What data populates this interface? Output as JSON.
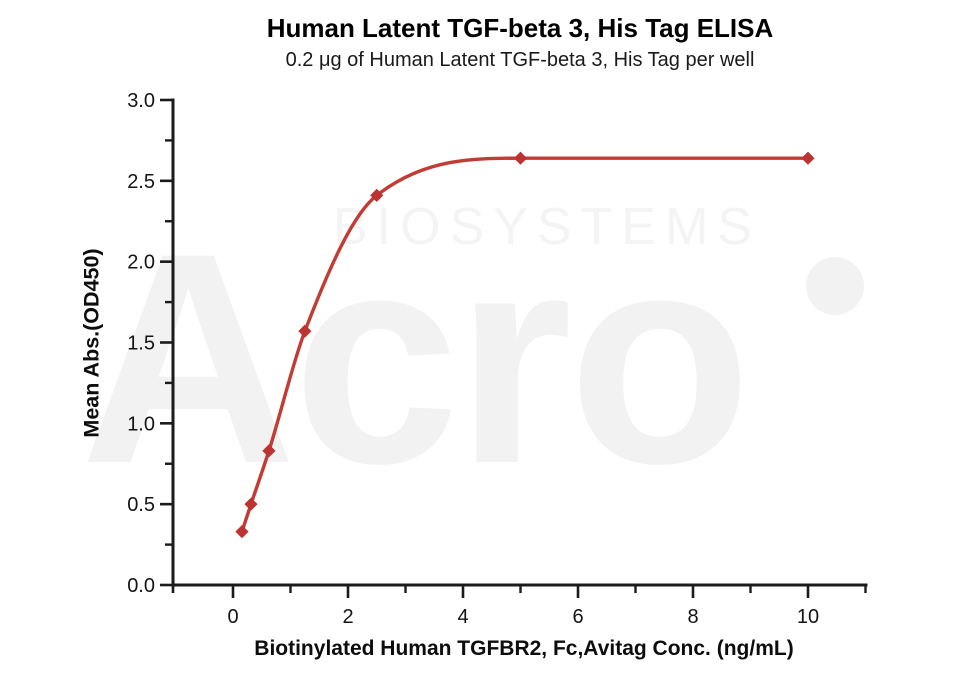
{
  "page": {
    "background": "#ffffff"
  },
  "chart_data": {
    "type": "scatter",
    "title": "Human Latent TGF-beta 3, His Tag ELISA",
    "subtitle": "0.2 μg of Human Latent TGF-beta 3, His Tag per well",
    "xlabel": "Biotinylated Human TGFBR2, Fc,Avitag Conc. (ng/mL)",
    "ylabel": "Mean Abs.(OD450)",
    "series": [
      {
        "name": "Human Latent TGF-beta 3, His Tag",
        "x": [
          0.156,
          0.313,
          0.625,
          1.25,
          2.5,
          5,
          10
        ],
        "y": [
          0.33,
          0.5,
          0.83,
          1.57,
          2.41,
          2.64,
          2.64
        ],
        "marker": "diamond",
        "marker_color": "#bc3331",
        "fit": "4PL sigmoidal fit curve"
      }
    ],
    "xlim": [
      -1,
      11
    ],
    "ylim": [
      0,
      3.0
    ],
    "x_major_ticks": [
      0,
      2,
      4,
      6,
      8,
      10
    ],
    "x_tick_labels": [
      "0",
      "2",
      "4",
      "6",
      "8",
      "10"
    ],
    "x_minor_ticks": [
      1,
      3,
      5,
      7,
      9,
      11
    ],
    "y_major_ticks": [
      0,
      0.5,
      1,
      1.5,
      2,
      2.5,
      3
    ],
    "y_tick_labels": [
      "0.0",
      "0.5",
      "1.0",
      "1.5",
      "2.0",
      "2.5",
      "3.0"
    ],
    "y_minor_ticks": [
      0.25,
      0.75,
      1.25,
      1.75,
      2.25,
      2.75
    ],
    "grid": false,
    "legend": "none",
    "axis_color": "#1b1b1b",
    "curve_color": "#c23b35"
  },
  "watermark": {
    "top_text": "BIOSYSTEMS",
    "logo_text": "Acro"
  }
}
